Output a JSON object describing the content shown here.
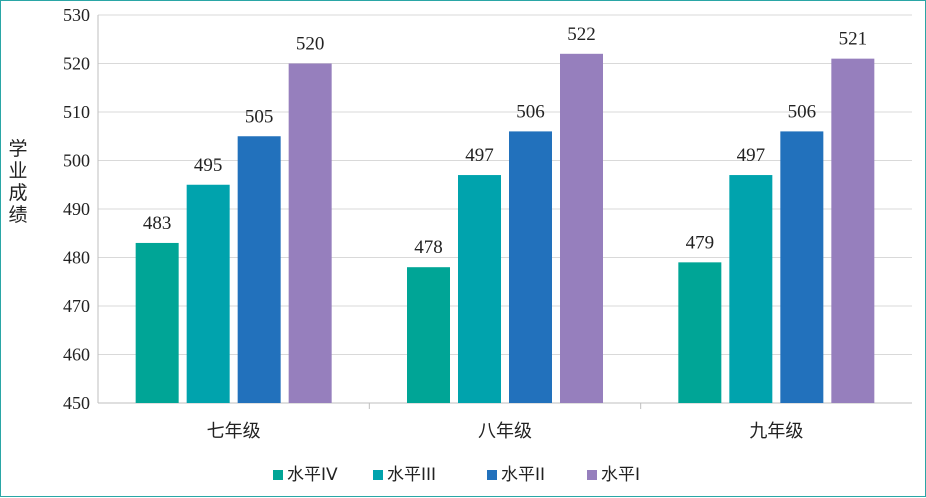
{
  "chart_data": {
    "type": "bar",
    "title": "",
    "xlabel": "",
    "ylabel": "学业成绩",
    "ylim": [
      450,
      530
    ],
    "yticks": [
      450,
      460,
      470,
      480,
      490,
      500,
      510,
      520,
      530
    ],
    "categories": [
      "七年级",
      "八年级",
      "九年级"
    ],
    "series": [
      {
        "name": "水平IV",
        "color": "#00a596",
        "values": [
          483,
          478,
          479
        ]
      },
      {
        "name": "水平III",
        "color": "#00a3ad",
        "values": [
          495,
          497,
          497
        ]
      },
      {
        "name": "水平II",
        "color": "#2271bc",
        "values": [
          505,
          506,
          506
        ]
      },
      {
        "name": "水平I",
        "color": "#967fbd",
        "values": [
          520,
          522,
          521
        ]
      }
    ],
    "grid": true,
    "legend": "bottom"
  }
}
